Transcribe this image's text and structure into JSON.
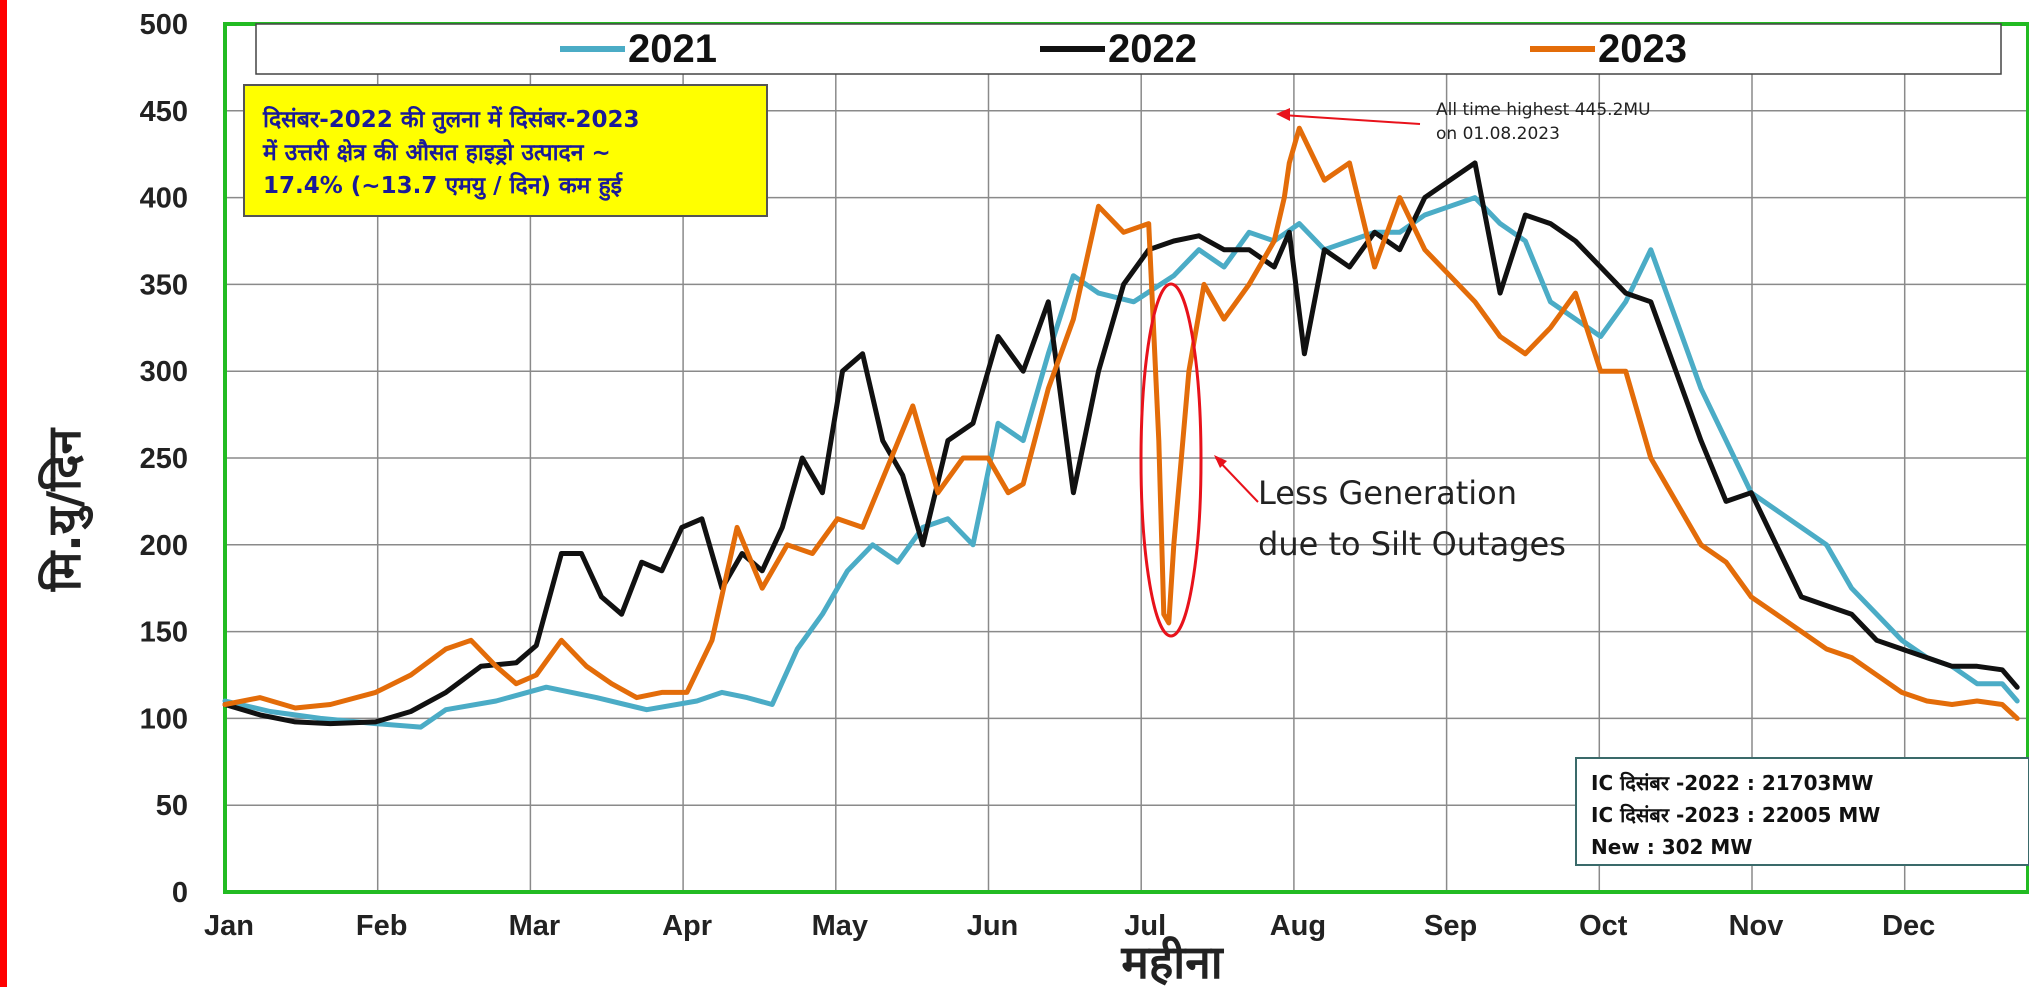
{
  "chart_data": {
    "type": "line",
    "xlabel": "महीना",
    "ylabel": "मि.यु/दिन",
    "ylim": [
      0,
      500
    ],
    "yticks": [
      0,
      50,
      100,
      150,
      200,
      250,
      300,
      350,
      400,
      450,
      500
    ],
    "months": [
      "Jan",
      "Feb",
      "Mar",
      "Apr",
      "May",
      "Jun",
      "Jul",
      "Aug",
      "Sep",
      "Oct",
      "Nov",
      "Dec"
    ],
    "grid": true,
    "legend_position": "top",
    "series": [
      {
        "name": "2021",
        "color": "#4bacc6",
        "x": [
          1,
          10,
          20,
          31,
          40,
          45,
          55,
          65,
          75,
          85,
          95,
          100,
          105,
          110,
          115,
          120,
          125,
          130,
          135,
          140,
          145,
          150,
          155,
          160,
          165,
          170,
          175,
          182,
          190,
          195,
          200,
          205,
          210,
          215,
          220,
          225,
          230,
          235,
          240,
          245,
          250,
          255,
          260,
          265,
          270,
          275,
          280,
          285,
          290,
          295,
          300,
          305,
          310,
          315,
          320,
          325,
          330,
          335,
          340,
          345,
          350,
          355,
          358
        ],
        "y": [
          110,
          104,
          100,
          97,
          95,
          105,
          110,
          118,
          112,
          105,
          110,
          115,
          112,
          108,
          140,
          160,
          185,
          200,
          190,
          210,
          215,
          200,
          270,
          260,
          310,
          355,
          345,
          340,
          355,
          370,
          360,
          380,
          375,
          385,
          370,
          375,
          380,
          380,
          390,
          395,
          400,
          385,
          375,
          340,
          330,
          320,
          340,
          370,
          330,
          290,
          260,
          230,
          220,
          210,
          200,
          175,
          160,
          145,
          135,
          130,
          120,
          120,
          110
        ]
      },
      {
        "name": "2022",
        "color": "#111111",
        "x": [
          1,
          8,
          15,
          22,
          31,
          38,
          45,
          52,
          59,
          63,
          68,
          72,
          76,
          80,
          84,
          88,
          92,
          96,
          100,
          104,
          108,
          112,
          116,
          120,
          124,
          128,
          132,
          136,
          140,
          145,
          150,
          155,
          160,
          165,
          170,
          175,
          180,
          185,
          190,
          195,
          200,
          205,
          210,
          213,
          216,
          220,
          225,
          230,
          235,
          240,
          245,
          250,
          255,
          260,
          265,
          270,
          275,
          280,
          285,
          290,
          295,
          300,
          305,
          310,
          315,
          320,
          325,
          330,
          335,
          340,
          345,
          350,
          355,
          358
        ],
        "y": [
          108,
          102,
          98,
          97,
          98,
          104,
          115,
          130,
          132,
          142,
          195,
          195,
          170,
          160,
          190,
          185,
          210,
          215,
          175,
          195,
          185,
          210,
          250,
          230,
          300,
          310,
          260,
          240,
          200,
          260,
          270,
          320,
          300,
          340,
          230,
          300,
          350,
          370,
          375,
          378,
          370,
          370,
          360,
          380,
          310,
          370,
          360,
          380,
          370,
          400,
          410,
          420,
          345,
          390,
          385,
          375,
          360,
          345,
          340,
          300,
          260,
          225,
          230,
          200,
          170,
          165,
          160,
          145,
          140,
          135,
          130,
          130,
          128,
          118
        ]
      },
      {
        "name": "2023",
        "color": "#e36c09",
        "x": [
          1,
          8,
          15,
          22,
          31,
          38,
          45,
          50,
          55,
          59,
          63,
          68,
          73,
          78,
          83,
          88,
          93,
          98,
          103,
          108,
          113,
          118,
          123,
          128,
          133,
          138,
          143,
          148,
          153,
          157,
          160,
          165,
          170,
          175,
          180,
          185,
          187,
          188,
          189,
          190,
          193,
          196,
          200,
          205,
          210,
          212,
          213,
          215,
          220,
          225,
          230,
          235,
          240,
          245,
          250,
          255,
          260,
          265,
          270,
          275,
          280,
          285,
          290,
          295,
          300,
          305,
          310,
          315,
          320,
          325,
          330,
          335,
          340,
          345,
          350,
          355,
          358
        ],
        "y": [
          108,
          112,
          106,
          108,
          115,
          125,
          140,
          145,
          130,
          120,
          125,
          145,
          130,
          120,
          112,
          115,
          115,
          145,
          210,
          175,
          200,
          195,
          215,
          210,
          245,
          280,
          230,
          250,
          250,
          230,
          235,
          290,
          330,
          395,
          380,
          385,
          260,
          160,
          155,
          200,
          300,
          350,
          330,
          350,
          375,
          400,
          420,
          440,
          410,
          420,
          360,
          400,
          370,
          355,
          340,
          320,
          310,
          325,
          345,
          300,
          300,
          250,
          225,
          200,
          190,
          170,
          160,
          150,
          140,
          135,
          125,
          115,
          110,
          108,
          110,
          108,
          100
        ]
      }
    ],
    "annotations": {
      "note_line1": "दिसंबर-2022 की तुलना में दिसंबर-2023",
      "note_line2": "में उत्तरी क्षेत्र की औसत हाइड्रो उत्पादन ~",
      "note_line3": "17.4% (~13.7 एमयु / दिन) कम हुई",
      "silt_line1": "Less Generation",
      "silt_line2": "due to Silt Outages",
      "high_line1": "All time highest 445.2MU",
      "high_line2": "on 01.08.2023",
      "ic_line1": "IC दिसंबर    -2022 : 21703MW",
      "ic_line2": "IC दिसंबर    -2023 : 22005 MW",
      "ic_line3": "New : 302 MW"
    }
  }
}
